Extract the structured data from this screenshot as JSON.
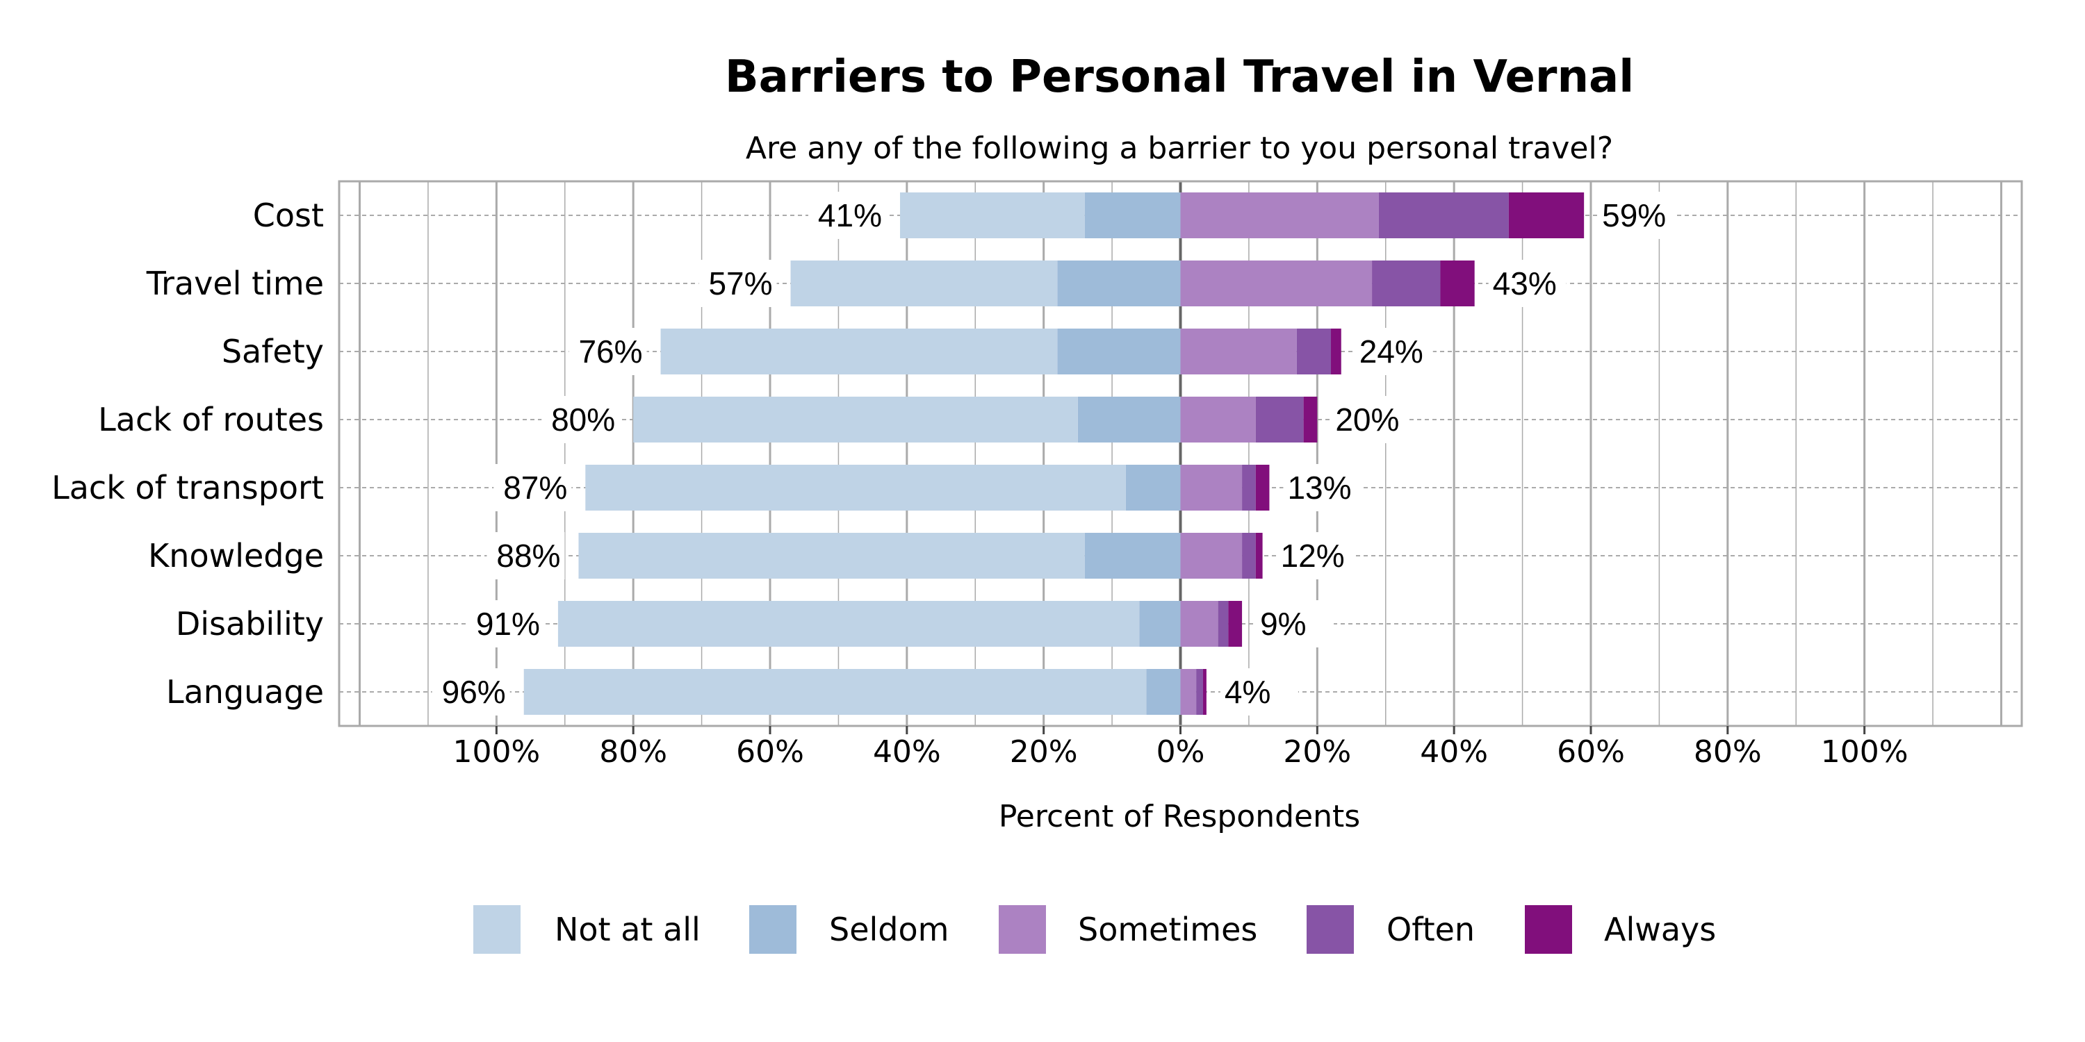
{
  "chart_data": {
    "type": "bar",
    "orientation": "horizontal",
    "stacked": "diverging",
    "title": "Barriers to Personal Travel in Vernal",
    "subtitle": "Are any of the following a barrier to you personal travel?",
    "xlabel": "Percent of Respondents",
    "ylabel": "",
    "xlim": [
      -123,
      123
    ],
    "xticks": [
      -100,
      -80,
      -60,
      -40,
      -20,
      0,
      20,
      40,
      60,
      80,
      100
    ],
    "xtick_labels": [
      "100%",
      "80%",
      "60%",
      "40%",
      "20%",
      "0%",
      "20%",
      "40%",
      "60%",
      "80%",
      "100%"
    ],
    "grid": true,
    "legend_placement": "bottom",
    "categories": [
      "Cost",
      "Travel time",
      "Safety",
      "Lack of routes",
      "Lack of transport",
      "Knowledge",
      "Disability",
      "Language"
    ],
    "series": [
      {
        "name": "Not at all",
        "side": "negative",
        "color": "#bfd3e6",
        "values": [
          27,
          39,
          58,
          65,
          79,
          74,
          85,
          91
        ]
      },
      {
        "name": "Seldom",
        "side": "negative",
        "color": "#9ebbd9",
        "values": [
          14,
          18,
          18,
          15,
          8,
          14,
          6,
          5
        ]
      },
      {
        "name": "Sometimes",
        "side": "positive",
        "color": "#ac82c2",
        "values": [
          29,
          28,
          17,
          11,
          9,
          9,
          5.5,
          2.3
        ]
      },
      {
        "name": "Often",
        "side": "positive",
        "color": "#8754a6",
        "values": [
          19,
          10,
          5,
          7,
          2,
          2,
          1.5,
          1
        ]
      },
      {
        "name": "Always",
        "side": "positive",
        "color": "#810f7c",
        "values": [
          11,
          5,
          1.5,
          2,
          2,
          1,
          2,
          0.5
        ]
      }
    ],
    "negative_totals": [
      "41%",
      "57%",
      "76%",
      "80%",
      "87%",
      "88%",
      "91%",
      "96%"
    ],
    "positive_totals": [
      "59%",
      "43%",
      "24%",
      "20%",
      "13%",
      "12%",
      "9%",
      "4%"
    ]
  }
}
